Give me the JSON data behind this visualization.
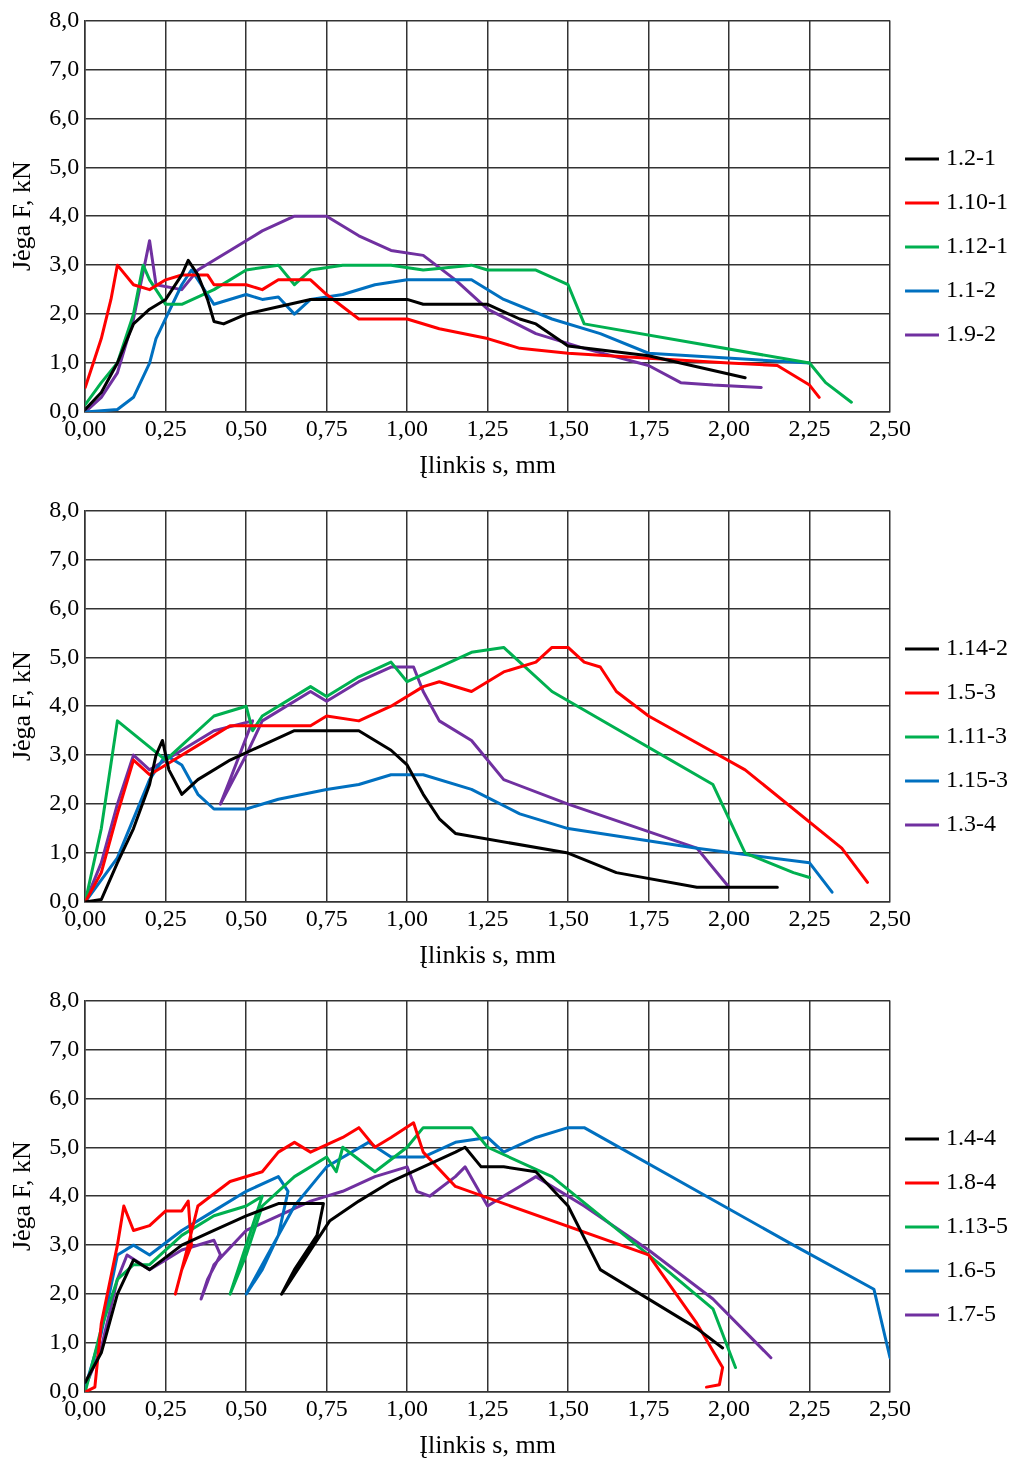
{
  "chart_data": [
    {
      "type": "line",
      "xlabel": "Įlinkis s, mm",
      "ylabel": "Jėga F, kN",
      "xlim": [
        0,
        2.5
      ],
      "ylim": [
        0,
        8
      ],
      "grid": true,
      "legend": "right",
      "marker": "none",
      "line_style": "solid",
      "xticks": [
        {
          "value": 0,
          "label": "0,00"
        },
        {
          "value": 0.25,
          "label": "0,25"
        },
        {
          "value": 0.5,
          "label": "0,50"
        },
        {
          "value": 0.75,
          "label": "0,75"
        },
        {
          "value": 1,
          "label": "1,00"
        },
        {
          "value": 1.25,
          "label": "1,25"
        },
        {
          "value": 1.5,
          "label": "1,50"
        },
        {
          "value": 1.75,
          "label": "1,75"
        },
        {
          "value": 2,
          "label": "2,00"
        },
        {
          "value": 2.25,
          "label": "2,25"
        },
        {
          "value": 2.5,
          "label": "2,50"
        }
      ],
      "yticks": [
        {
          "value": 0,
          "label": "0,0"
        },
        {
          "value": 1,
          "label": "1,0"
        },
        {
          "value": 2,
          "label": "2,0"
        },
        {
          "value": 3,
          "label": "3,0"
        },
        {
          "value": 4,
          "label": "4,0"
        },
        {
          "value": 5,
          "label": "5,0"
        },
        {
          "value": 6,
          "label": "6,0"
        },
        {
          "value": 7,
          "label": "7,0"
        },
        {
          "value": 8,
          "label": "8,0"
        }
      ],
      "series": [
        {
          "name": "1.2-1",
          "color": "#000000",
          "x": [
            0,
            0.05,
            0.1,
            0.15,
            0.2,
            0.25,
            0.3,
            0.32,
            0.35,
            0.38,
            0.4,
            0.43,
            0.5,
            0.6,
            0.7,
            1.0,
            1.05,
            1.25,
            1.35,
            1.4,
            1.5,
            1.75,
            2.05
          ],
          "values": [
            0.05,
            0.4,
            1.0,
            1.8,
            2.1,
            2.3,
            2.8,
            3.1,
            2.8,
            2.3,
            1.85,
            1.8,
            2.0,
            2.15,
            2.3,
            2.3,
            2.2,
            2.2,
            1.9,
            1.8,
            1.35,
            1.15,
            0.7
          ]
        },
        {
          "name": "1.10-1",
          "color": "#ff0000",
          "x": [
            0,
            0.02,
            0.05,
            0.08,
            0.1,
            0.15,
            0.2,
            0.25,
            0.3,
            0.38,
            0.4,
            0.5,
            0.55,
            0.6,
            0.7,
            0.75,
            0.85,
            1.0,
            1.1,
            1.25,
            1.35,
            1.5,
            1.75,
            2.0,
            2.15,
            2.25,
            2.28
          ],
          "values": [
            0.5,
            0.9,
            1.5,
            2.3,
            3.0,
            2.6,
            2.5,
            2.7,
            2.8,
            2.8,
            2.6,
            2.6,
            2.5,
            2.7,
            2.7,
            2.4,
            1.9,
            1.9,
            1.7,
            1.5,
            1.3,
            1.2,
            1.1,
            1.0,
            0.95,
            0.55,
            0.3
          ]
        },
        {
          "name": "1.12-1",
          "color": "#00b050",
          "x": [
            0,
            0.05,
            0.1,
            0.15,
            0.18,
            0.2,
            0.25,
            0.3,
            0.4,
            0.5,
            0.6,
            0.65,
            0.7,
            0.8,
            0.95,
            1.05,
            1.2,
            1.25,
            1.4,
            1.5,
            1.55,
            2.25,
            2.3,
            2.38
          ],
          "values": [
            0.15,
            0.6,
            1.0,
            2.0,
            3.0,
            2.7,
            2.2,
            2.2,
            2.5,
            2.9,
            3.0,
            2.6,
            2.9,
            3.0,
            3.0,
            2.9,
            3.0,
            2.9,
            2.9,
            2.6,
            1.8,
            1.0,
            0.6,
            0.2
          ]
        },
        {
          "name": "1.1-2",
          "color": "#0070c0",
          "x": [
            0,
            0.1,
            0.15,
            0.2,
            0.22,
            0.3,
            0.33,
            0.38,
            0.4,
            0.5,
            0.55,
            0.6,
            0.65,
            0.7,
            0.8,
            0.9,
            1.0,
            1.2,
            1.3,
            1.45,
            1.6,
            1.75,
            2.25
          ],
          "values": [
            0,
            0.05,
            0.3,
            1.0,
            1.5,
            2.6,
            2.9,
            2.4,
            2.2,
            2.4,
            2.3,
            2.35,
            2.0,
            2.3,
            2.4,
            2.6,
            2.7,
            2.7,
            2.3,
            1.9,
            1.6,
            1.2,
            1.0
          ]
        },
        {
          "name": "1.9-2",
          "color": "#7030a0",
          "x": [
            0,
            0.05,
            0.1,
            0.15,
            0.2,
            0.22,
            0.3,
            0.35,
            0.45,
            0.55,
            0.65,
            0.75,
            0.85,
            0.95,
            1.05,
            1.15,
            1.25,
            1.4,
            1.55,
            1.75,
            1.85,
            1.95,
            2.1
          ],
          "values": [
            0,
            0.3,
            0.8,
            1.9,
            3.5,
            2.6,
            2.5,
            2.9,
            3.3,
            3.7,
            4.0,
            4.0,
            3.6,
            3.3,
            3.2,
            2.7,
            2.1,
            1.6,
            1.3,
            0.95,
            0.6,
            0.55,
            0.5
          ]
        }
      ]
    },
    {
      "type": "line",
      "xlabel": "Įlinkis s, mm",
      "ylabel": "Jėga F, kN",
      "xlim": [
        0,
        2.5
      ],
      "ylim": [
        0,
        8
      ],
      "grid": true,
      "legend": "right",
      "marker": "none",
      "line_style": "solid",
      "xticks": [
        {
          "value": 0,
          "label": "0,00"
        },
        {
          "value": 0.25,
          "label": "0,25"
        },
        {
          "value": 0.5,
          "label": "0,50"
        },
        {
          "value": 0.75,
          "label": "0,75"
        },
        {
          "value": 1,
          "label": "1,00"
        },
        {
          "value": 1.25,
          "label": "1,25"
        },
        {
          "value": 1.5,
          "label": "1,50"
        },
        {
          "value": 1.75,
          "label": "1,75"
        },
        {
          "value": 2,
          "label": "2,00"
        },
        {
          "value": 2.25,
          "label": "2,25"
        },
        {
          "value": 2.5,
          "label": "2,50"
        }
      ],
      "yticks": [
        {
          "value": 0,
          "label": "0,0"
        },
        {
          "value": 1,
          "label": "1,0"
        },
        {
          "value": 2,
          "label": "2,0"
        },
        {
          "value": 3,
          "label": "3,0"
        },
        {
          "value": 4,
          "label": "4,0"
        },
        {
          "value": 5,
          "label": "5,0"
        },
        {
          "value": 6,
          "label": "6,0"
        },
        {
          "value": 7,
          "label": "7,0"
        },
        {
          "value": 8,
          "label": "8,0"
        }
      ],
      "series": [
        {
          "name": "1.14-2",
          "color": "#000000",
          "x": [
            0,
            0.05,
            0.1,
            0.15,
            0.2,
            0.22,
            0.24,
            0.26,
            0.3,
            0.35,
            0.45,
            0.55,
            0.65,
            0.75,
            0.85,
            0.95,
            1.0,
            1.05,
            1.1,
            1.15,
            1.5,
            1.65,
            1.9,
            2.15
          ],
          "values": [
            0,
            0.05,
            0.8,
            1.5,
            2.4,
            3.0,
            3.3,
            2.7,
            2.2,
            2.5,
            2.9,
            3.2,
            3.5,
            3.5,
            3.5,
            3.1,
            2.8,
            2.2,
            1.7,
            1.4,
            1.0,
            0.6,
            0.3,
            0.3
          ]
        },
        {
          "name": "1.5-3",
          "color": "#ff0000",
          "x": [
            0,
            0.05,
            0.1,
            0.15,
            0.2,
            0.25,
            0.35,
            0.45,
            0.7,
            0.75,
            0.85,
            0.95,
            1.05,
            1.1,
            1.2,
            1.3,
            1.4,
            1.45,
            1.5,
            1.55,
            1.6,
            1.65,
            1.75,
            2.05,
            2.35,
            2.43
          ],
          "values": [
            0,
            0.6,
            1.8,
            2.9,
            2.6,
            2.8,
            3.2,
            3.6,
            3.6,
            3.8,
            3.7,
            4.0,
            4.4,
            4.5,
            4.3,
            4.7,
            4.9,
            5.2,
            5.2,
            4.9,
            4.8,
            4.3,
            3.8,
            2.7,
            1.1,
            0.4
          ]
        },
        {
          "name": "1.11-3",
          "color": "#00b050",
          "x": [
            0,
            0.05,
            0.1,
            0.25,
            0.3,
            0.4,
            0.5,
            0.52,
            0.55,
            0.7,
            0.75,
            0.85,
            0.95,
            1.0,
            1.1,
            1.2,
            1.3,
            1.35,
            1.45,
            1.95,
            2.05,
            2.2,
            2.25
          ],
          "values": [
            0,
            1.5,
            3.7,
            2.9,
            3.2,
            3.8,
            4.0,
            3.5,
            3.8,
            4.4,
            4.2,
            4.6,
            4.9,
            4.5,
            4.8,
            5.1,
            5.2,
            4.9,
            4.3,
            2.4,
            1.0,
            0.6,
            0.5
          ]
        },
        {
          "name": "1.15-3",
          "color": "#0070c0",
          "x": [
            0,
            0.1,
            0.2,
            0.25,
            0.3,
            0.35,
            0.4,
            0.5,
            0.6,
            0.75,
            0.85,
            0.95,
            1.05,
            1.2,
            1.35,
            1.5,
            1.9,
            2.25,
            2.32
          ],
          "values": [
            0,
            0.9,
            2.5,
            3.0,
            2.8,
            2.2,
            1.9,
            1.9,
            2.1,
            2.3,
            2.4,
            2.6,
            2.6,
            2.3,
            1.8,
            1.5,
            1.1,
            0.8,
            0.2
          ]
        },
        {
          "name": "1.3-4",
          "color": "#7030a0",
          "x": [
            0,
            0.05,
            0.1,
            0.15,
            0.2,
            0.3,
            0.4,
            0.52,
            0.45,
            0.42,
            0.5,
            0.55,
            0.7,
            0.75,
            0.85,
            0.95,
            1.02,
            1.05,
            1.1,
            1.2,
            1.3,
            1.5,
            1.9,
            2.0
          ],
          "values": [
            0,
            0.8,
            2.0,
            3.0,
            2.7,
            3.1,
            3.5,
            3.7,
            2.5,
            2.0,
            3.0,
            3.7,
            4.3,
            4.1,
            4.5,
            4.8,
            4.8,
            4.3,
            3.7,
            3.3,
            2.5,
            2.0,
            1.1,
            0.3
          ]
        }
      ]
    },
    {
      "type": "line",
      "xlabel": "Įlinkis s, mm",
      "ylabel": "Jėga F, kN",
      "xlim": [
        0,
        2.5
      ],
      "ylim": [
        0,
        8
      ],
      "grid": true,
      "legend": "right",
      "marker": "none",
      "line_style": "solid",
      "xticks": [
        {
          "value": 0,
          "label": "0,00"
        },
        {
          "value": 0.25,
          "label": "0,25"
        },
        {
          "value": 0.5,
          "label": "0,50"
        },
        {
          "value": 0.75,
          "label": "0,75"
        },
        {
          "value": 1,
          "label": "1,00"
        },
        {
          "value": 1.25,
          "label": "1,25"
        },
        {
          "value": 1.5,
          "label": "1,50"
        },
        {
          "value": 1.75,
          "label": "1,75"
        },
        {
          "value": 2,
          "label": "2,00"
        },
        {
          "value": 2.25,
          "label": "2,25"
        },
        {
          "value": 2.5,
          "label": "2,50"
        }
      ],
      "yticks": [
        {
          "value": 0,
          "label": "0,0"
        },
        {
          "value": 1,
          "label": "1,0"
        },
        {
          "value": 2,
          "label": "2,0"
        },
        {
          "value": 3,
          "label": "3,0"
        },
        {
          "value": 4,
          "label": "4,0"
        },
        {
          "value": 5,
          "label": "5,0"
        },
        {
          "value": 6,
          "label": "6,0"
        },
        {
          "value": 7,
          "label": "7,0"
        },
        {
          "value": 8,
          "label": "8,0"
        }
      ],
      "series": [
        {
          "name": "1.4-4",
          "color": "#000000",
          "x": [
            0,
            0.05,
            0.1,
            0.15,
            0.2,
            0.3,
            0.4,
            0.5,
            0.6,
            0.74,
            0.72,
            0.65,
            0.61,
            0.68,
            0.76,
            0.85,
            0.95,
            1.05,
            1.15,
            1.18,
            1.23,
            1.3,
            1.4,
            1.5,
            1.6,
            1.9,
            1.98
          ],
          "values": [
            0.2,
            0.8,
            2.0,
            2.7,
            2.5,
            3.0,
            3.3,
            3.6,
            3.85,
            3.85,
            3.2,
            2.5,
            2.0,
            2.7,
            3.5,
            3.9,
            4.3,
            4.6,
            4.9,
            5.0,
            4.6,
            4.6,
            4.5,
            3.8,
            2.5,
            1.3,
            0.9
          ]
        },
        {
          "name": "1.8-4",
          "color": "#ff0000",
          "x": [
            0,
            0.03,
            0.05,
            0.1,
            0.12,
            0.15,
            0.2,
            0.25,
            0.3,
            0.32,
            0.33,
            0.3,
            0.28,
            0.32,
            0.35,
            0.45,
            0.55,
            0.6,
            0.65,
            0.7,
            0.8,
            0.85,
            0.9,
            0.95,
            1.02,
            1.05,
            1.15,
            1.75,
            1.9,
            1.98,
            1.97,
            1.93
          ],
          "values": [
            0,
            0.1,
            1.4,
            3.0,
            3.8,
            3.3,
            3.4,
            3.7,
            3.7,
            3.9,
            3.0,
            2.5,
            2.0,
            3.0,
            3.8,
            4.3,
            4.5,
            4.9,
            5.1,
            4.9,
            5.2,
            5.4,
            5.0,
            5.2,
            5.5,
            4.9,
            4.2,
            2.8,
            1.4,
            0.5,
            0.15,
            0.1
          ]
        },
        {
          "name": "1.13-5",
          "color": "#00b050",
          "x": [
            0,
            0.05,
            0.1,
            0.15,
            0.2,
            0.3,
            0.4,
            0.5,
            0.55,
            0.5,
            0.45,
            0.5,
            0.55,
            0.65,
            0.75,
            0.78,
            0.8,
            0.9,
            1.0,
            1.05,
            1.2,
            1.25,
            1.45,
            1.75,
            1.95,
            2.02
          ],
          "values": [
            0,
            1.3,
            2.3,
            2.6,
            2.6,
            3.2,
            3.6,
            3.8,
            4.0,
            3.0,
            2.0,
            2.8,
            3.8,
            4.4,
            4.8,
            4.5,
            5.0,
            4.5,
            5.0,
            5.4,
            5.4,
            5.0,
            4.4,
            2.8,
            1.7,
            0.5
          ]
        },
        {
          "name": "1.6-5",
          "color": "#0070c0",
          "x": [
            0,
            0.05,
            0.1,
            0.15,
            0.2,
            0.3,
            0.4,
            0.5,
            0.6,
            0.63,
            0.6,
            0.55,
            0.5,
            0.55,
            0.65,
            0.75,
            0.88,
            0.95,
            1.05,
            1.15,
            1.25,
            1.3,
            1.4,
            1.5,
            1.55,
            2.2,
            2.45,
            2.5
          ],
          "values": [
            0.1,
            1.2,
            2.8,
            3.0,
            2.8,
            3.3,
            3.7,
            4.1,
            4.4,
            4.1,
            3.2,
            2.5,
            2.0,
            2.6,
            3.8,
            4.6,
            5.1,
            4.8,
            4.8,
            5.1,
            5.2,
            4.9,
            5.2,
            5.4,
            5.4,
            3.0,
            2.1,
            0.7
          ]
        },
        {
          "name": "1.7-5",
          "color": "#7030a0",
          "x": [
            0,
            0.05,
            0.1,
            0.13,
            0.2,
            0.3,
            0.4,
            0.42,
            0.38,
            0.36,
            0.4,
            0.5,
            0.6,
            0.7,
            0.8,
            0.9,
            1.0,
            1.03,
            1.07,
            1.15,
            1.18,
            1.25,
            1.35,
            1.4,
            1.55,
            1.75,
            1.95,
            2.13
          ],
          "values": [
            0.1,
            0.9,
            2.3,
            2.8,
            2.5,
            2.9,
            3.1,
            2.8,
            2.3,
            1.9,
            2.6,
            3.3,
            3.6,
            3.9,
            4.1,
            4.4,
            4.6,
            4.1,
            4.0,
            4.4,
            4.6,
            3.8,
            4.2,
            4.4,
            3.8,
            2.9,
            1.9,
            0.7
          ]
        }
      ]
    }
  ]
}
